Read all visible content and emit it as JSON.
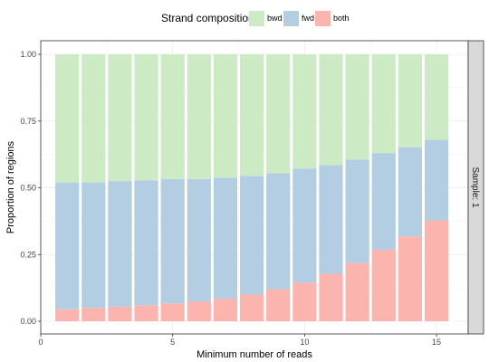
{
  "chart_data": {
    "type": "bar",
    "stacked": true,
    "xlabel": "Minimum number of reads",
    "ylabel": "Proportion of regions",
    "xlim": [
      0,
      16.2
    ],
    "ylim": [
      0,
      1
    ],
    "x_ticks": [
      0,
      5,
      10,
      15
    ],
    "x_tick_labels": [
      "0",
      "5",
      "10",
      "15"
    ],
    "y_ticks": [
      0,
      0.25,
      0.5,
      0.75,
      1
    ],
    "y_tick_labels": [
      "0.00",
      "0.25",
      "0.50",
      "0.75",
      "1.00"
    ],
    "x": [
      1,
      2,
      3,
      4,
      5,
      6,
      7,
      8,
      9,
      10,
      11,
      12,
      13,
      14,
      15
    ],
    "legend": {
      "title": "Strand composition",
      "position": "top",
      "entries": [
        {
          "name": "bwd",
          "color": "#ccebc5"
        },
        {
          "name": "fwd",
          "color": "#b3cde3"
        },
        {
          "name": "both",
          "color": "#fbb4ae"
        }
      ]
    },
    "series": [
      {
        "name": "both",
        "color": "#fbb4ae",
        "values": [
          0.045,
          0.05,
          0.055,
          0.06,
          0.067,
          0.074,
          0.085,
          0.1,
          0.12,
          0.145,
          0.178,
          0.218,
          0.268,
          0.318,
          0.378
        ]
      },
      {
        "name": "fwd",
        "color": "#b3cde3",
        "values": [
          0.475,
          0.47,
          0.47,
          0.468,
          0.466,
          0.459,
          0.453,
          0.445,
          0.435,
          0.427,
          0.407,
          0.387,
          0.362,
          0.334,
          0.302
        ]
      },
      {
        "name": "bwd",
        "color": "#ccebc5",
        "values": [
          0.48,
          0.48,
          0.475,
          0.472,
          0.467,
          0.467,
          0.462,
          0.455,
          0.445,
          0.428,
          0.415,
          0.395,
          0.37,
          0.348,
          0.32
        ]
      }
    ],
    "facet_label": "Sample: 1",
    "grid": true
  }
}
